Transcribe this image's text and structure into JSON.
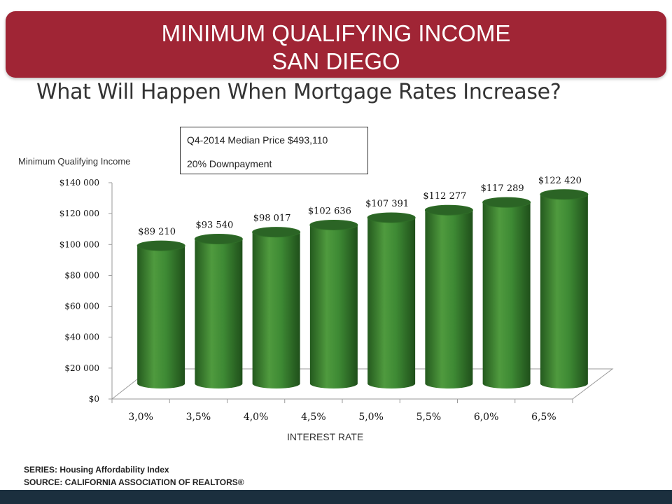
{
  "banner": {
    "line1": "MINIMUM QUALIFYING INCOME",
    "line2": "SAN DIEGO"
  },
  "subtitle": "What Will Happen When Mortgage Rates Increase?",
  "infobox": {
    "line1": "Q4-2014 Median Price $493,110",
    "line2": "20% Downpayment"
  },
  "footer": {
    "series": "SERIES: Housing Affordability Index",
    "source": "SOURCE: CALIFORNIA ASSOCIATION OF REALTORS®"
  },
  "colors": {
    "banner": "#a02535",
    "bar": "#3e8a34",
    "bar_dark": "#2b6425",
    "bottom_bar": "#1b2f3e"
  },
  "chart_data": {
    "type": "bar",
    "ylabel": "Minimum Qualifying Income",
    "xlabel": "INTEREST RATE",
    "categories": [
      "3,0%",
      "3,5%",
      "4,0%",
      "4,5%",
      "5,0%",
      "5,5%",
      "6,0%",
      "6,5%"
    ],
    "values": [
      89210,
      93540,
      98017,
      102636,
      107391,
      112277,
      117289,
      122420
    ],
    "data_labels": [
      "$89 210",
      "$93 540",
      "$98 017",
      "$102 636",
      "$107 391",
      "$112 277",
      "$117 289",
      "$122 420"
    ],
    "ylim": [
      0,
      140000
    ],
    "yticks": [
      0,
      20000,
      40000,
      60000,
      80000,
      100000,
      120000,
      140000
    ],
    "ytick_labels": [
      "$0",
      "$20 000",
      "$40 000",
      "$60 000",
      "$80 000",
      "$100 000",
      "$120 000",
      "$140 000"
    ],
    "grid": false,
    "style": "3d-cylinder"
  }
}
